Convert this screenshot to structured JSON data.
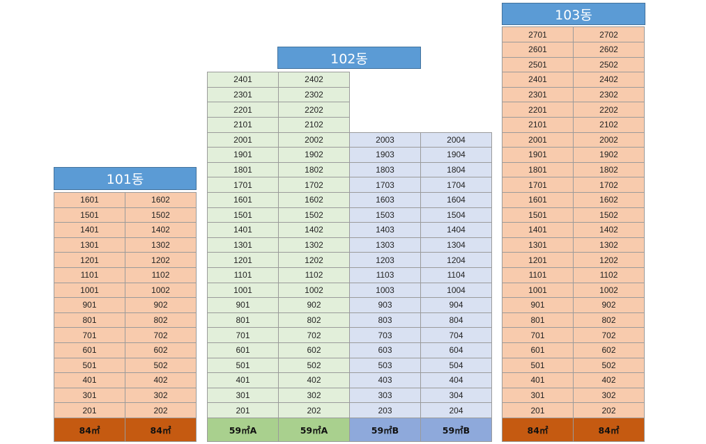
{
  "buildings": [
    {
      "id": "b101",
      "title": "101동",
      "columns": [
        {
          "units": [
            "1601",
            "1501",
            "1401",
            "1301",
            "1201",
            "1101",
            "1001",
            "901",
            "801",
            "701",
            "601",
            "501",
            "401",
            "301",
            "201"
          ],
          "type_label": "84㎡",
          "color": "#f8cbad",
          "type_color": "#c55a11"
        },
        {
          "units": [
            "1602",
            "1502",
            "1402",
            "1302",
            "1202",
            "1102",
            "1002",
            "902",
            "802",
            "702",
            "602",
            "502",
            "402",
            "302",
            "202"
          ],
          "type_label": "84㎡",
          "color": "#f8cbad",
          "type_color": "#c55a11"
        }
      ]
    },
    {
      "id": "b102",
      "title": "102동",
      "columns": [
        {
          "units": [
            "2401",
            "2301",
            "2201",
            "2101",
            "2001",
            "1901",
            "1801",
            "1701",
            "1601",
            "1501",
            "1401",
            "1301",
            "1201",
            "1101",
            "1001",
            "901",
            "801",
            "701",
            "601",
            "501",
            "401",
            "301",
            "201"
          ],
          "type_label": "59㎡A",
          "color": "#e2efda",
          "type_color": "#a9d08e"
        },
        {
          "units": [
            "2402",
            "2302",
            "2202",
            "2102",
            "2002",
            "1902",
            "1802",
            "1702",
            "1602",
            "1502",
            "1402",
            "1302",
            "1202",
            "1102",
            "1002",
            "902",
            "802",
            "702",
            "602",
            "502",
            "402",
            "302",
            "202"
          ],
          "type_label": "59㎡A",
          "color": "#e2efda",
          "type_color": "#a9d08e"
        },
        {
          "units": [
            "2003",
            "1903",
            "1803",
            "1703",
            "1603",
            "1503",
            "1403",
            "1303",
            "1203",
            "1103",
            "1003",
            "903",
            "803",
            "703",
            "603",
            "503",
            "403",
            "303",
            "203"
          ],
          "type_label": "59㎡B",
          "color": "#d9e1f2",
          "type_color": "#8ea9db"
        },
        {
          "units": [
            "2004",
            "1904",
            "1804",
            "1704",
            "1604",
            "1504",
            "1404",
            "1304",
            "1204",
            "1104",
            "1004",
            "904",
            "804",
            "704",
            "604",
            "504",
            "404",
            "304",
            "204"
          ],
          "type_label": "59㎡B",
          "color": "#d9e1f2",
          "type_color": "#8ea9db"
        }
      ]
    },
    {
      "id": "b103",
      "title": "103동",
      "columns": [
        {
          "units": [
            "2701",
            "2601",
            "2501",
            "2401",
            "2301",
            "2201",
            "2101",
            "2001",
            "1901",
            "1801",
            "1701",
            "1601",
            "1501",
            "1401",
            "1301",
            "1201",
            "1101",
            "1001",
            "901",
            "801",
            "701",
            "601",
            "501",
            "401",
            "301",
            "201"
          ],
          "type_label": "84㎡",
          "color": "#f8cbad",
          "type_color": "#c55a11"
        },
        {
          "units": [
            "2702",
            "2602",
            "2502",
            "2402",
            "2302",
            "2202",
            "2102",
            "2002",
            "1902",
            "1802",
            "1702",
            "1602",
            "1502",
            "1402",
            "1302",
            "1202",
            "1102",
            "1002",
            "902",
            "802",
            "702",
            "602",
            "502",
            "402",
            "302",
            "202"
          ],
          "type_label": "84㎡",
          "color": "#f8cbad",
          "type_color": "#c55a11"
        }
      ]
    }
  ]
}
